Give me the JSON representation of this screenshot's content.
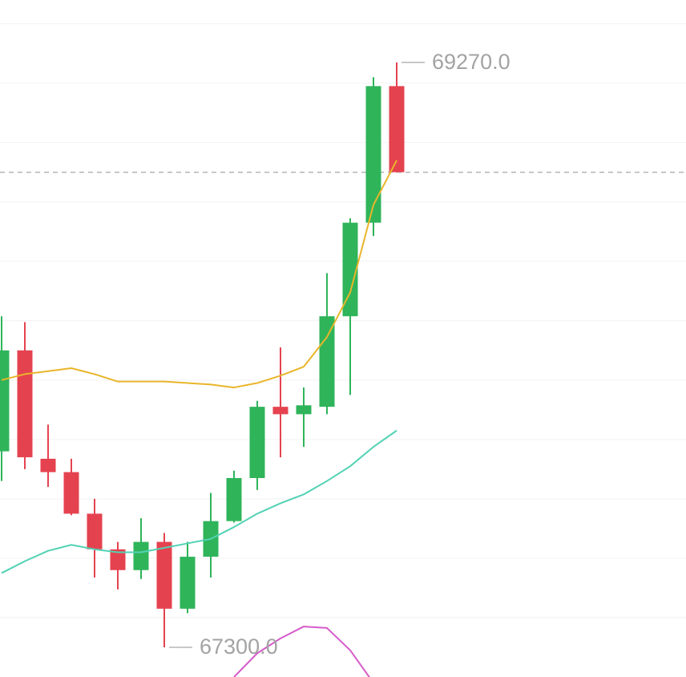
{
  "chart_data": {
    "type": "candlestick",
    "open": [
      67960,
      68300,
      67935,
      67890,
      67750,
      67630,
      67560,
      67655,
      67430,
      67605,
      67725,
      67870,
      68110,
      68085,
      68110,
      68415,
      68730,
      69190
    ],
    "high": [
      68415,
      68395,
      68050,
      67935,
      67800,
      67655,
      67735,
      67685,
      67655,
      67820,
      67895,
      68130,
      68310,
      68175,
      68560,
      68745,
      69220,
      69270
    ],
    "low": [
      67860,
      67900,
      67840,
      67745,
      67535,
      67495,
      67530,
      67300,
      67415,
      67535,
      67720,
      67830,
      67940,
      67975,
      68085,
      68150,
      68685,
      68900
    ],
    "close": [
      68300,
      67940,
      67890,
      67750,
      67630,
      67560,
      67655,
      67430,
      67605,
      67725,
      67870,
      68110,
      68085,
      68115,
      68415,
      68730,
      69190,
      68900
    ],
    "up_color": "#2fb45a",
    "down_color": "#e5424f",
    "series": [
      {
        "color": "#e9b52a",
        "values": [
          68200,
          68220,
          68230,
          68240,
          68220,
          68195,
          68195,
          68195,
          68190,
          68185,
          68175,
          68190,
          68215,
          68245,
          68345,
          68495,
          68790,
          68940
        ]
      },
      {
        "color": "#52d2b4",
        "values": [
          67550,
          67590,
          67625,
          67645,
          67630,
          67620,
          67620,
          67635,
          67650,
          67665,
          67705,
          67750,
          67785,
          67815,
          67860,
          67910,
          67975,
          68030
        ]
      },
      {
        "color": "#d45bc9",
        "values": [
          null,
          null,
          null,
          null,
          null,
          null,
          null,
          null,
          null,
          null,
          67200,
          67280,
          67330,
          67370,
          67365,
          67290,
          67180,
          null
        ]
      }
    ],
    "annotations": [
      {
        "label": "69270.0",
        "value": 69270
      },
      {
        "label": "67300.0",
        "value": 67300
      }
    ],
    "ylim": [
      67200,
      69480
    ],
    "yticks": [
      67400,
      67600,
      67800,
      68000,
      68200,
      68400,
      68600,
      68800,
      69000,
      69200,
      69400
    ],
    "grid": true
  }
}
